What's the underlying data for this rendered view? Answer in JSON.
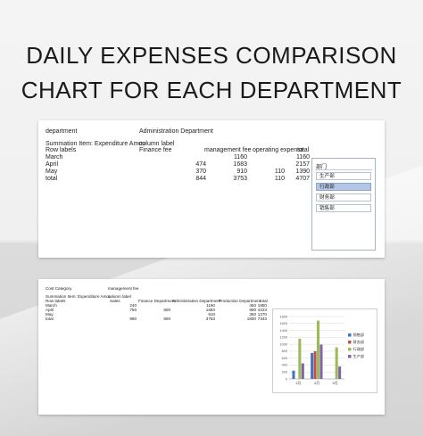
{
  "title_line1": "DAILY EXPENSES COMPARISON",
  "title_line2": "CHART FOR EACH DEPARTMENT",
  "sheet1": {
    "filter_label": "department",
    "filter_value": "Administration Department",
    "summary_label": "Summation Item: Expenditure Amou",
    "column_label": "column label",
    "row_labels": "Row labels",
    "col_finance": "Finance fee",
    "col_mgmt": "management fee",
    "col_operating": "operating expense",
    "col_total": "total",
    "rows": [
      {
        "label": "March",
        "finance": "",
        "mgmt": "1160",
        "operating": "",
        "total": "1160"
      },
      {
        "label": "April",
        "finance": "474",
        "mgmt": "1683",
        "operating": "",
        "total": "2157"
      },
      {
        "label": "May",
        "finance": "370",
        "mgmt": "910",
        "operating": "110",
        "total": "1390"
      },
      {
        "label": "total",
        "finance": "844",
        "mgmt": "3753",
        "operating": "110",
        "total": "4707"
      }
    ],
    "slicer": {
      "header": "部门",
      "items": [
        "生产部",
        "行政部",
        "财务部",
        "销售部"
      ],
      "selected": "行政部"
    }
  },
  "sheet2": {
    "filter_label": "Cost Category",
    "filter_value": "management fee",
    "summary_label": "Summation Item: Expenditure Amou",
    "column_label": "column label",
    "row_labels": "Row labels",
    "col_sales": "Sales",
    "col_finance": "Finance Department",
    "col_admin": "Administration Department",
    "col_production": "Production Department",
    "col_total": "total",
    "rows": [
      {
        "label": "March",
        "sales": "240",
        "finance": "",
        "admin": "1160",
        "production": "450",
        "total": "1850"
      },
      {
        "label": "April",
        "sales": "750",
        "finance": "800",
        "admin": "1683",
        "production": "990",
        "total": "4223"
      },
      {
        "label": "May",
        "sales": "",
        "finance": "",
        "admin": "910",
        "production": "360",
        "total": "1270"
      },
      {
        "label": "total",
        "sales": "990",
        "finance": "800",
        "admin": "3753",
        "production": "1800",
        "total": "7343"
      }
    ]
  },
  "chart_data": {
    "type": "bar",
    "categories": [
      "3月",
      "4月",
      "5月"
    ],
    "series": [
      {
        "name": "销售部",
        "color": "#4472c4",
        "values": [
          240,
          750,
          0
        ]
      },
      {
        "name": "财务部",
        "color": "#c0504d",
        "values": [
          0,
          800,
          0
        ]
      },
      {
        "name": "行政部",
        "color": "#9bbb59",
        "values": [
          1160,
          1683,
          910
        ]
      },
      {
        "name": "生产部",
        "color": "#8064a2",
        "values": [
          450,
          990,
          360
        ]
      }
    ],
    "ylim": [
      0,
      1800
    ],
    "yticks": [
      0,
      200,
      400,
      600,
      800,
      1000,
      1200,
      1400,
      1600,
      1800
    ],
    "grid": true,
    "legend": "right"
  },
  "colors": {
    "slicer_selected": "#b4c6e7",
    "slicer_border": "#a8b4c4"
  }
}
